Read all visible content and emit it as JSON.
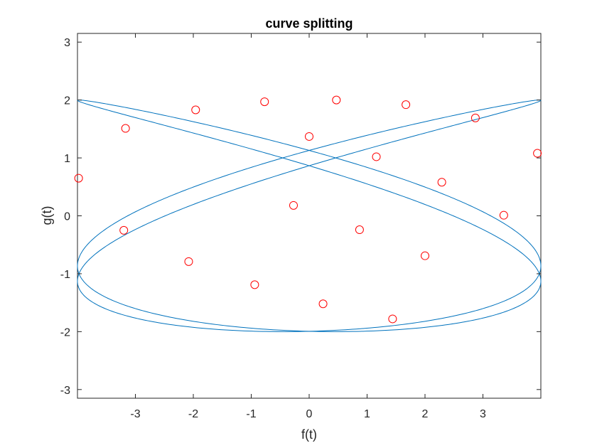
{
  "chart_data": {
    "type": "line",
    "title": "curve splitting",
    "xlabel": "f(t)",
    "ylabel": "g(t)",
    "xlim": [
      -4,
      4
    ],
    "ylim": [
      -3.15,
      3.15
    ],
    "x_ticks": [
      -3,
      -2,
      -1,
      0,
      1,
      2,
      3
    ],
    "y_ticks": [
      -3,
      -2,
      -1,
      0,
      1,
      2,
      3
    ],
    "grid": false,
    "box": true,
    "series": [
      {
        "kind": "curve",
        "description_formula": "f(t) = 4 sin(3t), g(t) = 2 sin(2t + 0.6)",
        "x_amplitude": 4,
        "x_frequency": 3,
        "y_amplitude": 2,
        "y_frequency": 2,
        "y_phase": 0.6,
        "color": "#0072BD"
      },
      {
        "kind": "markers",
        "marker": "circle",
        "color": "#FF0000",
        "points": [
          [
            -3.98,
            0.65
          ],
          [
            -3.17,
            1.51
          ],
          [
            -1.96,
            1.83
          ],
          [
            -0.77,
            1.97
          ],
          [
            0.47,
            2.0
          ],
          [
            1.67,
            1.92
          ],
          [
            2.87,
            1.69
          ],
          [
            3.94,
            1.08
          ],
          [
            0.0,
            1.37
          ],
          [
            1.16,
            1.02
          ],
          [
            2.29,
            0.58
          ],
          [
            3.36,
            0.01
          ],
          [
            -0.27,
            0.18
          ],
          [
            0.87,
            -0.24
          ],
          [
            2.0,
            -0.69
          ],
          [
            -3.2,
            -0.25
          ],
          [
            -2.08,
            -0.79
          ],
          [
            -0.94,
            -1.19
          ],
          [
            0.24,
            -1.52
          ],
          [
            1.44,
            -1.78
          ]
        ]
      }
    ]
  }
}
